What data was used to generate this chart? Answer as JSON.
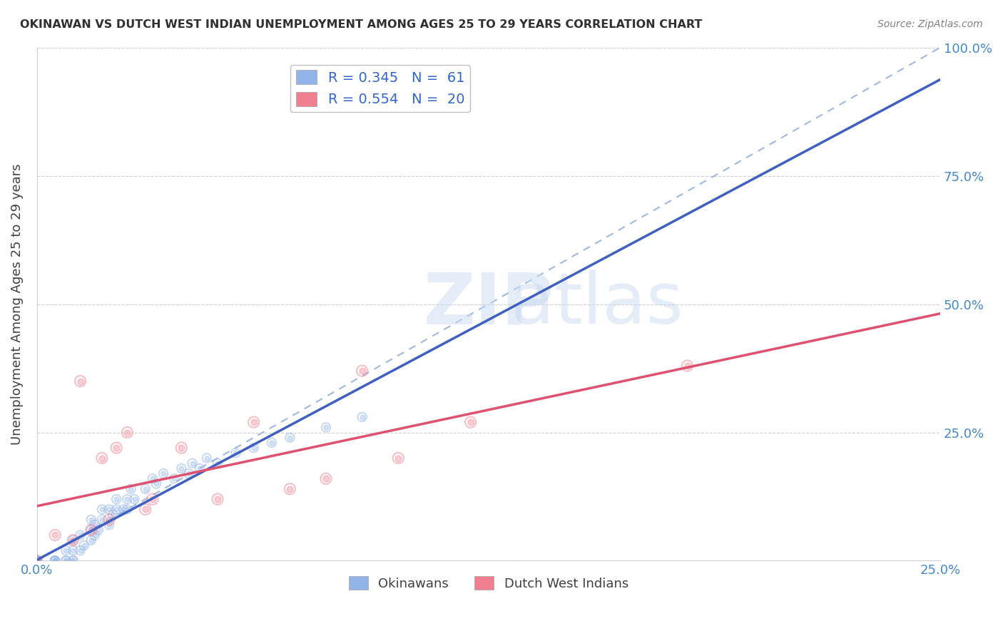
{
  "title": "OKINAWAN VS DUTCH WEST INDIAN UNEMPLOYMENT AMONG AGES 25 TO 29 YEARS CORRELATION CHART",
  "source": "Source: ZipAtlas.com",
  "xlabel": "",
  "ylabel": "Unemployment Among Ages 25 to 29 years",
  "xlim": [
    0.0,
    0.25
  ],
  "ylim": [
    0.0,
    1.0
  ],
  "xticks": [
    0.0,
    0.05,
    0.1,
    0.15,
    0.2,
    0.25
  ],
  "xtick_labels": [
    "0.0%",
    "",
    "",
    "",
    "",
    "25.0%"
  ],
  "yticks": [
    0.0,
    0.25,
    0.5,
    0.75,
    1.0
  ],
  "ytick_labels": [
    "",
    "25.0%",
    "50.0%",
    "75.0%",
    "100.0%"
  ],
  "watermark": "ZIPatlas",
  "legend_entries": [
    {
      "label": "R = 0.345   N =  61",
      "color": "#aec6f0"
    },
    {
      "label": "R = 0.554   N =  20",
      "color": "#f4a0b0"
    }
  ],
  "okinawan_x": [
    0.0,
    0.0,
    0.0,
    0.0,
    0.0,
    0.0,
    0.0,
    0.0,
    0.0,
    0.0,
    0.0,
    0.0,
    0.005,
    0.005,
    0.005,
    0.005,
    0.008,
    0.008,
    0.008,
    0.01,
    0.01,
    0.01,
    0.01,
    0.012,
    0.012,
    0.013,
    0.015,
    0.015,
    0.015,
    0.016,
    0.016,
    0.017,
    0.018,
    0.018,
    0.02,
    0.02,
    0.021,
    0.022,
    0.022,
    0.024,
    0.025,
    0.025,
    0.026,
    0.027,
    0.03,
    0.032,
    0.033,
    0.035,
    0.038,
    0.04,
    0.042,
    0.043,
    0.045,
    0.047,
    0.05,
    0.055,
    0.06,
    0.065,
    0.07,
    0.08,
    0.09
  ],
  "okinawan_y": [
    0.0,
    0.0,
    0.0,
    0.0,
    0.0,
    0.0,
    0.0,
    0.0,
    0.0,
    0.0,
    0.0,
    0.0,
    0.0,
    0.0,
    0.0,
    0.0,
    0.0,
    0.0,
    0.02,
    0.0,
    0.0,
    0.02,
    0.04,
    0.02,
    0.05,
    0.03,
    0.04,
    0.06,
    0.08,
    0.05,
    0.07,
    0.06,
    0.08,
    0.1,
    0.07,
    0.1,
    0.09,
    0.1,
    0.12,
    0.1,
    0.1,
    0.12,
    0.14,
    0.12,
    0.14,
    0.16,
    0.15,
    0.17,
    0.16,
    0.18,
    0.17,
    0.19,
    0.18,
    0.2,
    0.19,
    0.21,
    0.22,
    0.23,
    0.24,
    0.26,
    0.28
  ],
  "dutch_x": [
    0.0,
    0.005,
    0.01,
    0.012,
    0.015,
    0.018,
    0.02,
    0.022,
    0.025,
    0.03,
    0.032,
    0.04,
    0.05,
    0.06,
    0.07,
    0.08,
    0.09,
    0.1,
    0.12,
    0.18
  ],
  "dutch_y": [
    0.0,
    0.05,
    0.04,
    0.35,
    0.06,
    0.2,
    0.08,
    0.22,
    0.25,
    0.1,
    0.12,
    0.22,
    0.12,
    0.27,
    0.14,
    0.16,
    0.37,
    0.2,
    0.27,
    0.38
  ],
  "blue_color": "#92b4e8",
  "pink_color": "#f08090",
  "blue_line_color": "#4060c0",
  "pink_line_color": "#e05070",
  "dashed_line_color": "#a0b8e0",
  "grid_color": "#d0d0d0",
  "title_color": "#303030",
  "axis_label_color": "#606060",
  "tick_color": "#4488cc",
  "right_tick_color": "#4488cc",
  "watermark_color": "#c8daf0",
  "scatter_size": 80,
  "scatter_alpha": 0.5
}
